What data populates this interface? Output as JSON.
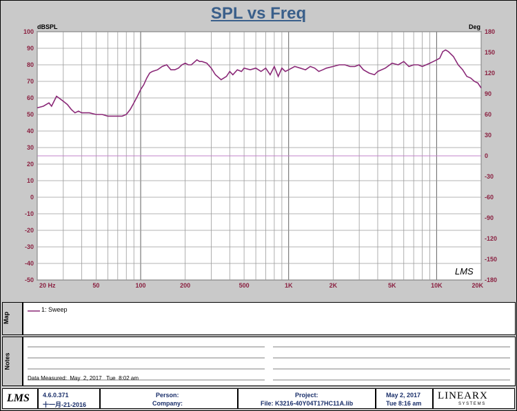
{
  "chart_data": {
    "type": "line",
    "title": "SPL vs Freq",
    "ylabel": "dBSPL",
    "y2label": "Deg",
    "xscale": "log",
    "xlim": [
      20,
      20000
    ],
    "ylim": [
      -50,
      100
    ],
    "y2lim": [
      -180,
      180
    ],
    "grid": true,
    "x_ticks": [
      {
        "value": 20,
        "label": "20  Hz"
      },
      {
        "value": 50,
        "label": "50"
      },
      {
        "value": 100,
        "label": "100"
      },
      {
        "value": 200,
        "label": "200"
      },
      {
        "value": 500,
        "label": "500"
      },
      {
        "value": 1000,
        "label": "1K"
      },
      {
        "value": 2000,
        "label": "2K"
      },
      {
        "value": 5000,
        "label": "5K"
      },
      {
        "value": 10000,
        "label": "10K"
      },
      {
        "value": 20000,
        "label": "20K"
      }
    ],
    "y_ticks": [
      100,
      90,
      80,
      70,
      60,
      50,
      40,
      30,
      20,
      10,
      0,
      -10,
      -20,
      -30,
      -40,
      -50
    ],
    "y2_ticks": [
      180,
      150,
      120,
      90,
      60,
      30,
      0,
      -30,
      -60,
      -90,
      -120,
      -150,
      -180
    ],
    "legend_placement": "map panel",
    "series": [
      {
        "name": "1: Sweep",
        "color": "#8a2877",
        "x": [
          20,
          22,
          24,
          25,
          27,
          28,
          30,
          32,
          34,
          36,
          38,
          40,
          45,
          50,
          55,
          60,
          65,
          70,
          75,
          80,
          85,
          90,
          95,
          100,
          105,
          110,
          115,
          120,
          130,
          140,
          150,
          160,
          170,
          180,
          190,
          200,
          210,
          220,
          240,
          250,
          260,
          280,
          300,
          320,
          350,
          380,
          400,
          420,
          450,
          480,
          500,
          550,
          600,
          650,
          700,
          750,
          800,
          850,
          900,
          950,
          1000,
          1100,
          1200,
          1300,
          1400,
          1500,
          1600,
          1700,
          1800,
          2000,
          2200,
          2400,
          2600,
          2800,
          3000,
          3200,
          3500,
          3800,
          4000,
          4500,
          5000,
          5500,
          6000,
          6500,
          7000,
          7500,
          8000,
          8500,
          9000,
          9500,
          10000,
          10500,
          11000,
          11500,
          12000,
          13000,
          14000,
          15000,
          16000,
          17000,
          18000,
          19000,
          20000
        ],
        "values": [
          54,
          55,
          57,
          55,
          61,
          60,
          58,
          56,
          53,
          51,
          52,
          51,
          51,
          50,
          50,
          49,
          49,
          49,
          49,
          50,
          53,
          57,
          61,
          65,
          68,
          72,
          75,
          76,
          77,
          79,
          80,
          77,
          77,
          78,
          80,
          81,
          80,
          80,
          83,
          82,
          82,
          81,
          78,
          74,
          71,
          73,
          76,
          74,
          77,
          76,
          78,
          77,
          78,
          76,
          78,
          74,
          79,
          73,
          78,
          76,
          77,
          79,
          78,
          77,
          79,
          78,
          76,
          77,
          78,
          79,
          80,
          80,
          79,
          79,
          80,
          77,
          75,
          74,
          76,
          78,
          81,
          80,
          82,
          79,
          80,
          80,
          79,
          80,
          81,
          82,
          83,
          84,
          88,
          89,
          88,
          85,
          80,
          77,
          73,
          72,
          70,
          69,
          66
        ]
      }
    ],
    "annotations": [
      {
        "text": "LMS"
      }
    ]
  },
  "map_label": "Map",
  "notes_label": "Notes",
  "data_measured": "Data Measured:  May  2, 2017   Tue  8:02 am",
  "footer": {
    "logo": "LMS",
    "version": "4.6.0.371",
    "version_date": "十一月-21-2016",
    "person": "Person:",
    "company": "Company:",
    "project": "Project:",
    "file": "File: K3216-40Y04T17HC11A.lib",
    "date": "May  2, 2017",
    "time": "Tue  8:16 am",
    "brand": "LINEARX",
    "brand_sub": "S Y S T E M S"
  },
  "colors": {
    "axis_labels": "#8a2040",
    "curve": "#8a2877",
    "zero_line": "#c080c8",
    "title": "#3a5f8a"
  }
}
